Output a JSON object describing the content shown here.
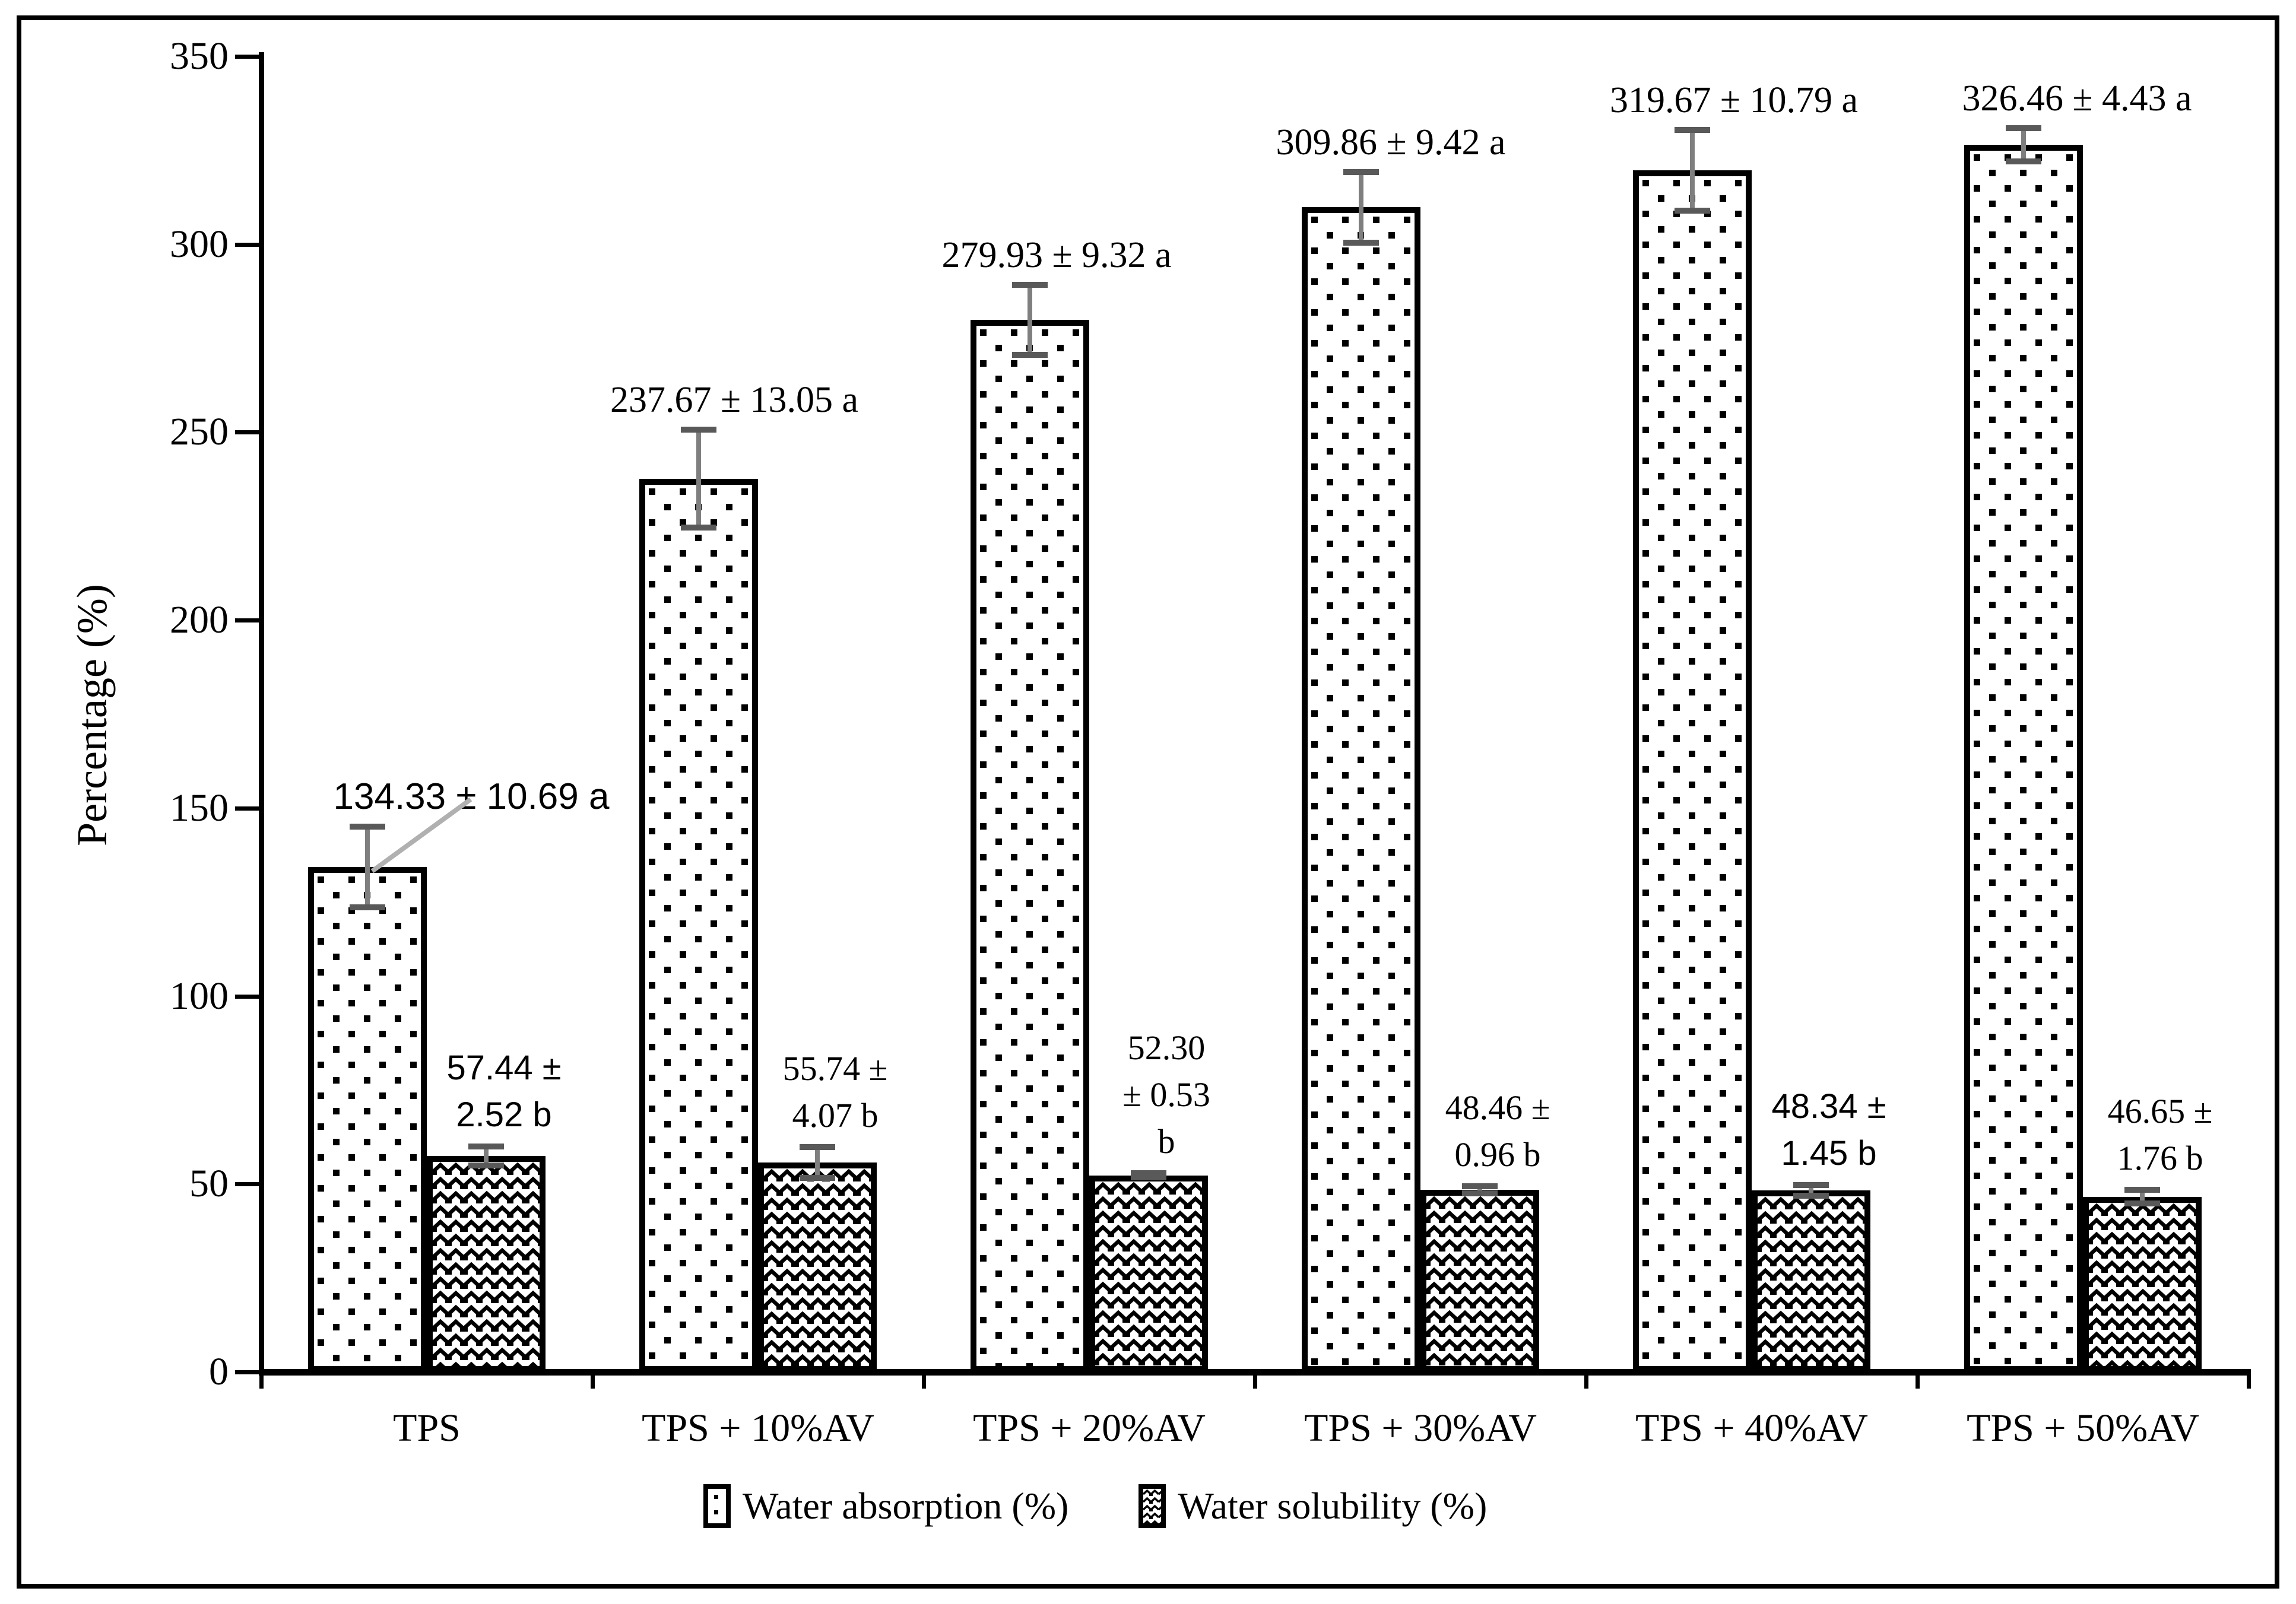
{
  "y_axis": {
    "title": "Percentage (%)",
    "tick_labels": [
      "0",
      "50",
      "100",
      "150",
      "200",
      "250",
      "300",
      "350"
    ]
  },
  "legend": {
    "items": [
      {
        "label": "Water absorption (%)",
        "swatch": "dots-pattern"
      },
      {
        "label": "Water solubility (%)",
        "swatch": "waves-pattern"
      }
    ]
  },
  "chart_data": {
    "type": "bar",
    "title": "",
    "xlabel": "",
    "ylabel": "Percentage (%)",
    "ylim": [
      0,
      350
    ],
    "ytick_step": 50,
    "grid": false,
    "legend_position": "bottom",
    "categories": [
      "TPS",
      "TPS + 10%AV",
      "TPS + 20%AV",
      "TPS + 30%AV",
      "TPS + 40%AV",
      "TPS + 50%AV"
    ],
    "series": [
      {
        "name": "Water absorption (%)",
        "pattern": "dots",
        "values": [
          134.33,
          237.67,
          279.93,
          309.86,
          319.67,
          326.46
        ],
        "errors": [
          10.69,
          13.05,
          9.32,
          9.42,
          10.79,
          4.43
        ],
        "sig_letters": [
          "a",
          "a",
          "a",
          "a",
          "a",
          "a"
        ],
        "labels": [
          "134.33 ± 10.69 a",
          "237.67 ± 13.05 a",
          "279.93 ± 9.32 a",
          "309.86 ± 9.42 a",
          "319.67 ± 10.79 a",
          "326.46 ± 4.43 a"
        ]
      },
      {
        "name": "Water solubility (%)",
        "pattern": "waves",
        "values": [
          57.44,
          55.74,
          52.3,
          48.46,
          48.34,
          46.65
        ],
        "errors": [
          2.52,
          4.07,
          0.53,
          0.96,
          1.45,
          1.76
        ],
        "sig_letters": [
          "b",
          "b",
          "b",
          "b",
          "b",
          "b"
        ],
        "label_lines": [
          [
            "57.44 ±",
            "2.52 b"
          ],
          [
            "55.74 ±",
            "4.07 b"
          ],
          [
            "52.30",
            "± 0.53",
            "b"
          ],
          [
            "48.46 ±",
            "0.96 b"
          ],
          [
            "48.34 ±",
            "1.45 b"
          ],
          [
            "46.65 ±",
            "1.76 b"
          ]
        ]
      }
    ]
  },
  "colors": {
    "background": "#ffffff",
    "frame_border": "#000000",
    "axis": "#000000",
    "bar_fill": "#ffffff",
    "bar_border": "#000000",
    "pattern_ink": "#000000",
    "error_line": "#7f7f7f",
    "error_cap": "#595959",
    "leader_line": "#b0b0b0"
  }
}
